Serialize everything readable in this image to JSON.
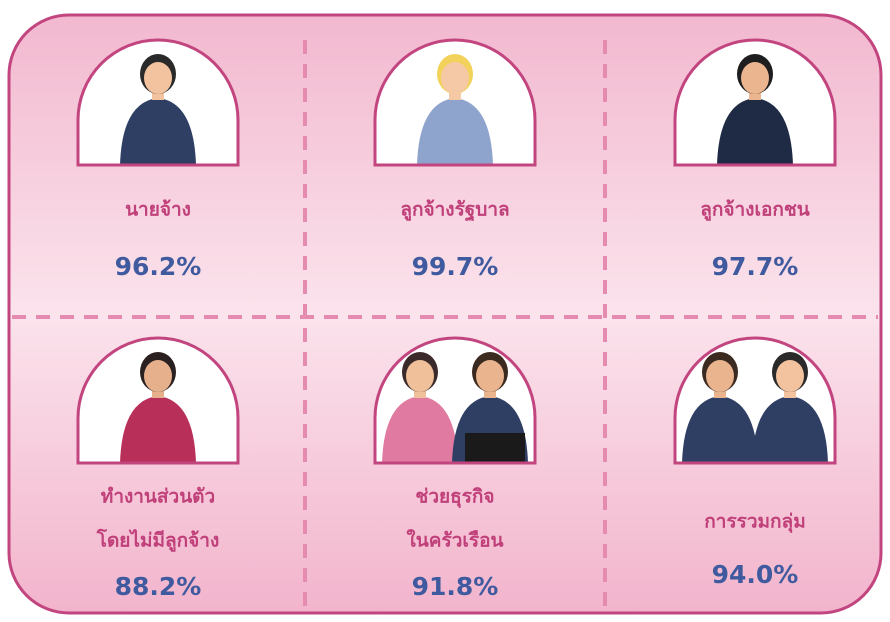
{
  "cells": [
    {
      "label": [
        "นายจ้าง"
      ],
      "value": "96.2%"
    },
    {
      "label": [
        "ลูกจ้างรัฐบาล"
      ],
      "value": "99.7%"
    },
    {
      "label": [
        "ลูกจ้างเอกชน"
      ],
      "value": "97.7%"
    },
    {
      "label": [
        "ทำงานส่วนตัว",
        "โดยไม่มีลูกจ้าง"
      ],
      "value": "88.2%"
    },
    {
      "label": [
        "ช่วยธุรกิจ",
        "ในครัวเรือน"
      ],
      "value": "91.8%"
    },
    {
      "label": [
        "การรวมกลุ่ม"
      ],
      "value": "94.0%"
    }
  ]
}
